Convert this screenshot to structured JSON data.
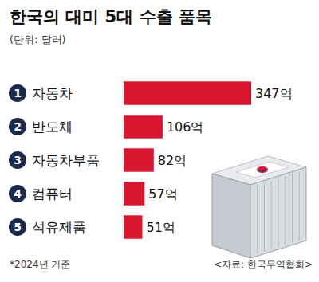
{
  "chart_data": {
    "type": "bar",
    "title": "한국의 대미 5대 수출 품목",
    "subtitle": "(단위: 달러)",
    "orientation": "horizontal",
    "ranks": [
      1,
      2,
      3,
      4,
      5
    ],
    "categories": [
      "자동차",
      "반도체",
      "자동차부품",
      "컴퓨터",
      "석유제품"
    ],
    "values": [
      347,
      106,
      82,
      57,
      51
    ],
    "value_labels": [
      "347억",
      "106억",
      "82억",
      "57억",
      "51억"
    ],
    "color": "#d7172f",
    "xlim": [
      0,
      347
    ],
    "data_labels": true,
    "tick_labels": "y",
    "note": "*2024년 기준",
    "source": "<자료: 한국무역협회>"
  }
}
